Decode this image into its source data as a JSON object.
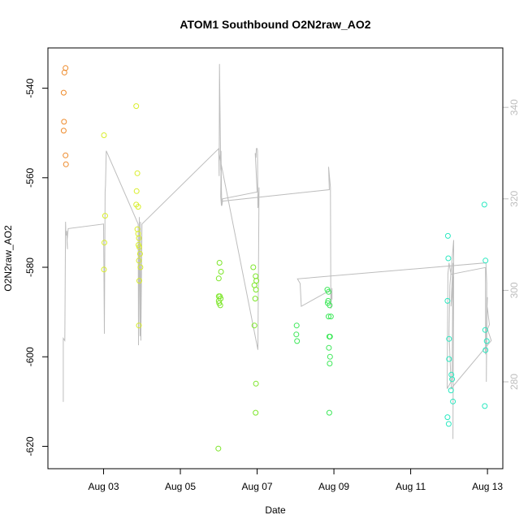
{
  "chart_data": {
    "type": "scatter",
    "title": "ATOM1 Southbound O2N2raw_AO2",
    "xlabel": "Date",
    "ylabel": "O2N2raw_AO2",
    "xlim": [
      0.55,
      12.4
    ],
    "ylim": [
      -625,
      -531
    ],
    "y2lim": [
      261,
      353
    ],
    "x_ticks": [
      {
        "value": 2,
        "label": "Aug 03"
      },
      {
        "value": 4,
        "label": "Aug 05"
      },
      {
        "value": 6,
        "label": "Aug 07"
      },
      {
        "value": 8,
        "label": "Aug 09"
      },
      {
        "value": 10,
        "label": "Aug 11"
      },
      {
        "value": 12,
        "label": "Aug 13"
      }
    ],
    "y_ticks": [
      -540,
      -560,
      -580,
      -600,
      -620
    ],
    "y2_ticks": [
      340,
      320,
      300,
      280
    ],
    "grid": false,
    "series": [
      {
        "color": "#ee8a2a",
        "points": [
          [
            0.96,
            -541
          ],
          [
            0.98,
            -536.5
          ],
          [
            1.01,
            -535.5
          ],
          [
            0.97,
            -547.5
          ],
          [
            0.96,
            -549.5
          ],
          [
            1.01,
            -555
          ],
          [
            1.02,
            -557
          ]
        ]
      },
      {
        "color": "#d9ee2a",
        "points": [
          [
            2.01,
            -550.5
          ],
          [
            2.04,
            -568.5
          ],
          [
            2.02,
            -574.5
          ],
          [
            2.01,
            -580.5
          ],
          [
            2.85,
            -544
          ],
          [
            2.88,
            -559
          ],
          [
            2.86,
            -563
          ],
          [
            2.85,
            -566
          ],
          [
            2.9,
            -566.5
          ],
          [
            2.88,
            -571.5
          ],
          [
            2.9,
            -572.5
          ],
          [
            2.92,
            -573.5
          ],
          [
            2.91,
            -575
          ],
          [
            2.93,
            -575.5
          ],
          [
            2.95,
            -577
          ],
          [
            2.92,
            -578.5
          ],
          [
            2.96,
            -580
          ],
          [
            2.93,
            -583
          ],
          [
            2.92,
            -593
          ]
        ]
      },
      {
        "color": "#7de62a",
        "points": [
          [
            5.0,
            -582.5
          ],
          [
            5.02,
            -579
          ],
          [
            5.06,
            -581
          ],
          [
            5.0,
            -586.5
          ],
          [
            5.03,
            -586.5
          ],
          [
            5.05,
            -587
          ],
          [
            5.0,
            -587.5
          ],
          [
            5.01,
            -588
          ],
          [
            5.04,
            -588.5
          ],
          [
            4.99,
            -620.5
          ],
          [
            5.9,
            -580
          ],
          [
            5.96,
            -582
          ],
          [
            5.98,
            -583
          ],
          [
            5.93,
            -584
          ],
          [
            5.97,
            -585
          ],
          [
            5.95,
            -587
          ],
          [
            5.93,
            -593
          ],
          [
            5.97,
            -606
          ],
          [
            5.96,
            -612.5
          ]
        ]
      },
      {
        "color": "#3ee85a",
        "points": [
          [
            7.03,
            -593
          ],
          [
            7.02,
            -595
          ],
          [
            7.04,
            -596.5
          ],
          [
            7.83,
            -585
          ],
          [
            7.86,
            -585.5
          ],
          [
            7.85,
            -587.5
          ],
          [
            7.84,
            -588
          ],
          [
            7.89,
            -588.5
          ],
          [
            7.86,
            -591
          ],
          [
            7.92,
            -591
          ],
          [
            7.88,
            -595.5
          ],
          [
            7.9,
            -595.5
          ],
          [
            7.87,
            -598
          ],
          [
            7.9,
            -600
          ],
          [
            7.89,
            -601.5
          ],
          [
            7.88,
            -612.5
          ]
        ]
      },
      {
        "color": "#2ae8c0",
        "points": [
          [
            10.97,
            -573
          ],
          [
            10.98,
            -578
          ],
          [
            10.96,
            -587.5
          ],
          [
            11.0,
            -596
          ],
          [
            11.0,
            -600.5
          ],
          [
            11.06,
            -604
          ],
          [
            11.08,
            -605
          ],
          [
            11.05,
            -607.5
          ],
          [
            11.1,
            -610
          ],
          [
            10.96,
            -613.5
          ],
          [
            10.99,
            -615
          ],
          [
            11.92,
            -566
          ],
          [
            11.95,
            -578.5
          ],
          [
            11.94,
            -594
          ],
          [
            11.98,
            -596.5
          ],
          [
            11.95,
            -598.5
          ],
          [
            11.93,
            -611
          ]
        ]
      }
    ],
    "lines": [
      {
        "axis": "right",
        "color": "#bdbdbd",
        "points": [
          [
            0.95,
            275.6
          ],
          [
            0.95,
            289.5
          ],
          [
            0.99,
            289
          ],
          [
            1.01,
            315
          ],
          [
            1.02,
            312
          ],
          [
            1.04,
            313
          ],
          [
            1.05,
            310
          ],
          [
            1.06,
            309
          ],
          [
            1.05,
            311
          ],
          [
            1.08,
            313.5
          ],
          [
            2.0,
            314.5
          ],
          [
            2.02,
            290.5
          ],
          [
            2.04,
            321.5
          ],
          [
            2.05,
            323
          ],
          [
            2.07,
            330.5
          ],
          [
            2.9,
            314.5
          ],
          [
            2.91,
            288
          ],
          [
            2.93,
            316
          ],
          [
            2.95,
            290
          ],
          [
            2.96,
            315
          ],
          [
            2.97,
            289
          ],
          [
            3.0,
            314.5
          ],
          [
            5.0,
            331
          ],
          [
            5.01,
            325
          ],
          [
            5.02,
            349.5
          ],
          [
            5.04,
            334
          ],
          [
            5.05,
            326.5
          ],
          [
            5.06,
            326
          ],
          [
            5.05,
            320.5
          ],
          [
            5.07,
            318.5
          ],
          [
            5.1,
            320
          ],
          [
            6.0,
            321.5
          ],
          [
            5.95,
            330
          ],
          [
            5.97,
            329
          ],
          [
            5.98,
            331
          ],
          [
            6.0,
            331
          ],
          [
            6.01,
            330.5
          ],
          [
            6.02,
            318
          ],
          [
            6.03,
            319
          ],
          [
            6.05,
            322.5
          ],
          [
            6.02,
            287
          ],
          [
            5.03,
            329
          ],
          [
            5.06,
            330.5
          ],
          [
            5.07,
            322
          ],
          [
            5.08,
            318.5
          ],
          [
            5.1,
            319.5
          ],
          [
            7.88,
            322
          ],
          [
            7.86,
            327
          ],
          [
            7.91,
            322.5
          ],
          [
            7.92,
            296
          ],
          [
            7.95,
            300.5
          ],
          [
            7.95,
            298
          ],
          [
            7.9,
            300
          ],
          [
            7.15,
            296.5
          ],
          [
            7.12,
            301.5
          ],
          [
            7.05,
            302.5
          ],
          [
            11.96,
            306
          ],
          [
            11.98,
            301.5
          ],
          [
            11.97,
            280
          ],
          [
            11.99,
            296.5
          ],
          [
            12.0,
            296
          ],
          [
            12.05,
            292.5
          ],
          [
            12.0,
            291.5
          ],
          [
            12.1,
            289
          ],
          [
            11.05,
            278.5
          ],
          [
            11.08,
            281
          ],
          [
            11.1,
            306
          ],
          [
            11.05,
            296.5
          ],
          [
            11.12,
            303
          ],
          [
            11.1,
            267.5
          ],
          [
            11.12,
            311
          ],
          [
            11.02,
            301
          ],
          [
            11.0,
            290.5
          ],
          [
            11.05,
            280
          ],
          [
            10.95,
            278.5
          ],
          [
            10.97,
            303.5
          ],
          [
            11.0,
            306
          ],
          [
            11.05,
            303.5
          ],
          [
            11.95,
            305
          ],
          [
            11.95,
            286
          ],
          [
            11.98,
            294.5
          ],
          [
            12.0,
            298.5
          ],
          [
            11.98,
            296.5
          ]
        ]
      }
    ]
  }
}
